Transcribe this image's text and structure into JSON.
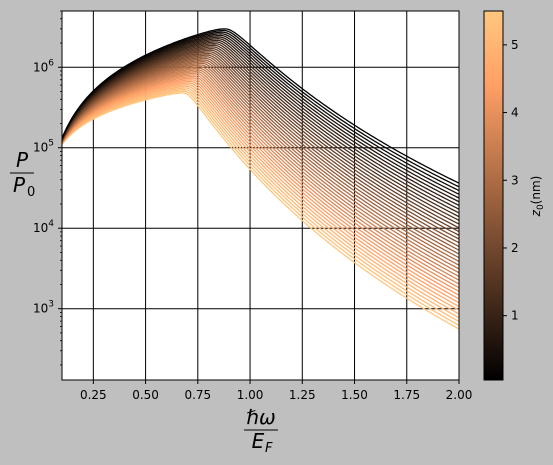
{
  "chart_data": {
    "type": "line",
    "x_range": [
      0.1,
      2.0
    ],
    "x_ticks": [
      "0.25",
      "0.50",
      "0.75",
      "1.00",
      "1.25",
      "1.50",
      "1.75",
      "2.00"
    ],
    "x_tick_values": [
      0.25,
      0.5,
      0.75,
      1.0,
      1.25,
      1.5,
      1.75,
      2.0
    ],
    "y_scale": "log",
    "y_range": [
      130,
      5000000
    ],
    "y_ticks": [
      "10^3",
      "10^4",
      "10^5",
      "10^6"
    ],
    "y_tick_values": [
      1000,
      10000,
      100000,
      1000000
    ],
    "xlabel_num": "ℏω",
    "xlabel_den": "E",
    "xlabel_den_sub": "F",
    "ylabel_num": "P",
    "ylabel_den": "P",
    "ylabel_den_sub": "0",
    "grid": true,
    "series_count": 40,
    "parameter": "z0",
    "parameter_range": [
      0.05,
      5.5
    ],
    "series_endpoints": {
      "z0_min": {
        "peak_x": 0.88,
        "peak_y": 3000000,
        "end_y": 26000,
        "start_y": 120000
      },
      "z0_max": {
        "peak_x": 0.68,
        "peak_y": 480000,
        "end_y": 380,
        "start_y": 105000
      }
    },
    "colorbar": {
      "label": "z",
      "label_sub": "0",
      "label_suffix": "(nm)",
      "ticks": [
        "1",
        "2",
        "3",
        "4",
        "5"
      ],
      "tick_values": [
        1,
        2,
        3,
        4,
        5
      ],
      "range": [
        0.05,
        5.5
      ],
      "colormap": "copper",
      "color_low": "#000000",
      "color_high": "#ffc77f"
    }
  }
}
